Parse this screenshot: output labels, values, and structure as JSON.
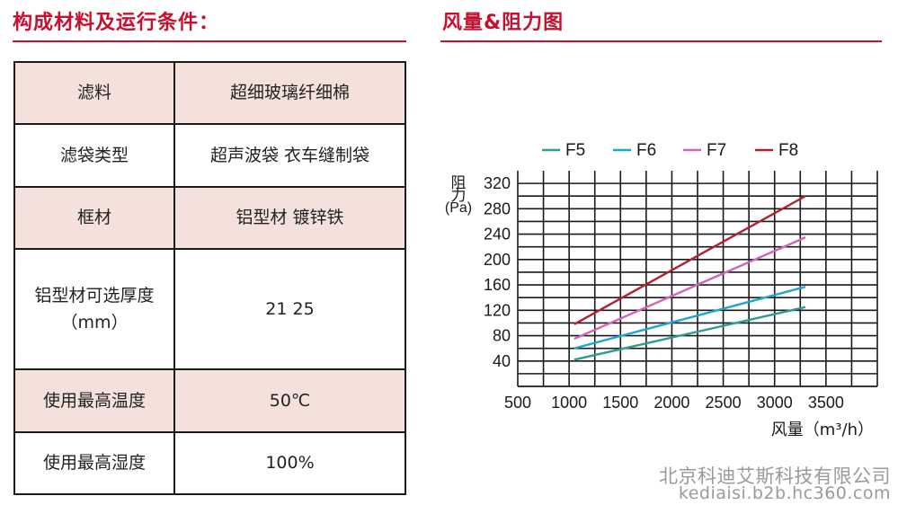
{
  "colors": {
    "title": "#c8102e",
    "rule": "#c8102e",
    "tint": "#f5e1dc"
  },
  "left": {
    "title": "构成材料及运行条件："
  },
  "right": {
    "title": "风量&阻力图"
  },
  "table": {
    "rows": [
      {
        "label": "滤料",
        "value": "超细玻璃纤细棉",
        "tinted": true
      },
      {
        "label": "滤袋类型",
        "value": "超声波袋 衣车缝制袋",
        "tinted": false
      },
      {
        "label": "框材",
        "value": "铝型材 镀锌铁",
        "tinted": true
      },
      {
        "label": "铝型材可选厚度",
        "label2": "（mm）",
        "value": "21 25",
        "tinted": false
      },
      {
        "label": "使用最高温度",
        "value": "50℃",
        "tinted": true
      },
      {
        "label": "使用最高湿度",
        "value": "100%",
        "tinted": false
      }
    ]
  },
  "chart_data": {
    "type": "line",
    "title": "风量&阻力图",
    "xlabel": "风量（m³/h）",
    "ylabel": [
      "阻",
      "力",
      "(Pa)"
    ],
    "xticks": [
      500,
      1000,
      1500,
      2000,
      2500,
      3000,
      3500
    ],
    "yticks": [
      40,
      80,
      120,
      160,
      200,
      240,
      280,
      320
    ],
    "xlim": [
      500,
      4000
    ],
    "ylim": [
      0,
      340
    ],
    "grid": true,
    "legend": "top",
    "series": [
      {
        "name": "F5",
        "color": "#2a9d8f",
        "x": [
          1050,
          3300
        ],
        "y": [
          42,
          125
        ]
      },
      {
        "name": "F6",
        "color": "#1ba7d2",
        "x": [
          1050,
          3300
        ],
        "y": [
          60,
          157
        ]
      },
      {
        "name": "F7",
        "color": "#d264b8",
        "x": [
          1050,
          3300
        ],
        "y": [
          75,
          235
        ]
      },
      {
        "name": "F8",
        "color": "#b3202e",
        "x": [
          1050,
          3300
        ],
        "y": [
          98,
          300
        ]
      }
    ]
  },
  "footer": {
    "company": "北京科迪艾斯科技有限公司",
    "domain": "kediaisi.b2b.hc360.com"
  }
}
